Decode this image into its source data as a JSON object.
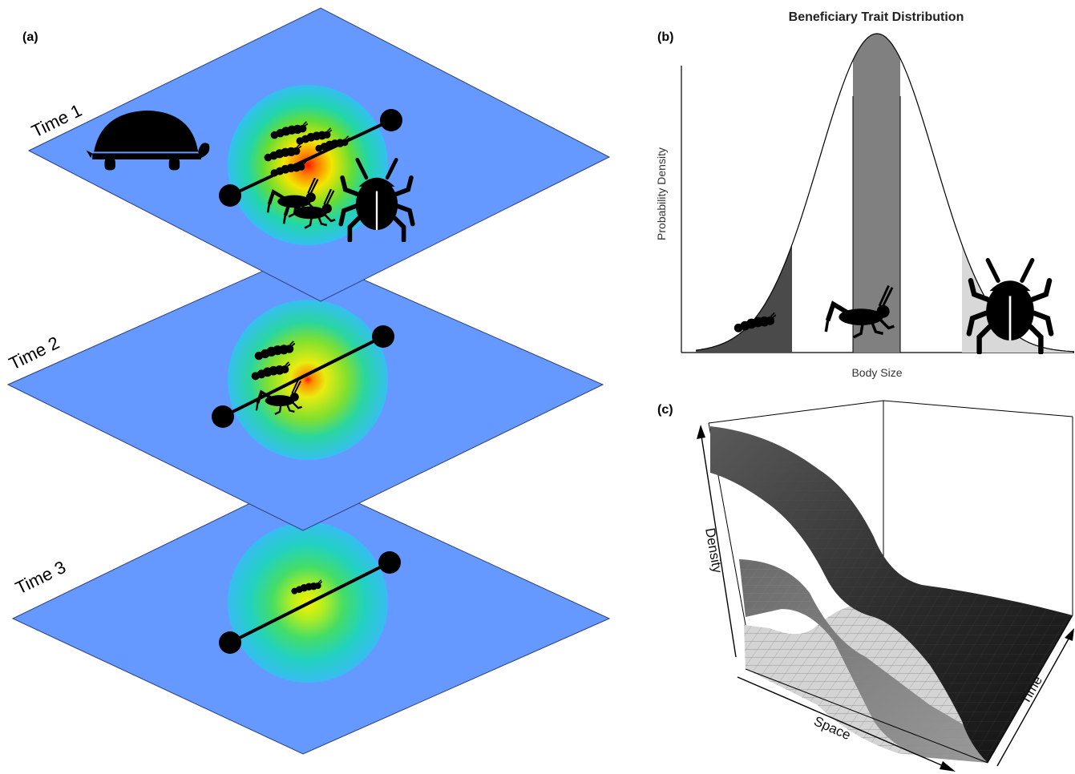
{
  "panel_a": {
    "label": "(a)",
    "layers": [
      {
        "time_label": "Time 1",
        "hotspot": "red",
        "organisms": [
          "caterpillar",
          "caterpillar",
          "caterpillar",
          "caterpillar",
          "caterpillar",
          "grasshopper",
          "grasshopper",
          "beetle"
        ],
        "outside": [
          "turtle"
        ]
      },
      {
        "time_label": "Time 2",
        "hotspot": "red",
        "organisms": [
          "caterpillar",
          "caterpillar",
          "grasshopper"
        ],
        "outside": []
      },
      {
        "time_label": "Time 3",
        "hotspot": "yellow",
        "organisms": [
          "caterpillar"
        ],
        "outside": []
      }
    ],
    "colors": {
      "plane": "#6699ff",
      "plane_edge": "#2c3f7a"
    }
  },
  "panel_b": {
    "label": "(b)",
    "title": "Beneficiary Trait Distribution",
    "xlabel": "Body Size",
    "ylabel": "Probability Density",
    "shaded_regions": [
      "small (caterpillar)",
      "medium (grasshopper)",
      "large (beetle)"
    ],
    "colors": {
      "small": "#4a4a4a",
      "medium": "#808080",
      "large": "#d8d8d8"
    }
  },
  "panel_c": {
    "label": "(c)",
    "xlabel": "Space",
    "ylabel": "Density",
    "zlabel": "Time",
    "surfaces": [
      "dark",
      "medium",
      "light"
    ]
  }
}
